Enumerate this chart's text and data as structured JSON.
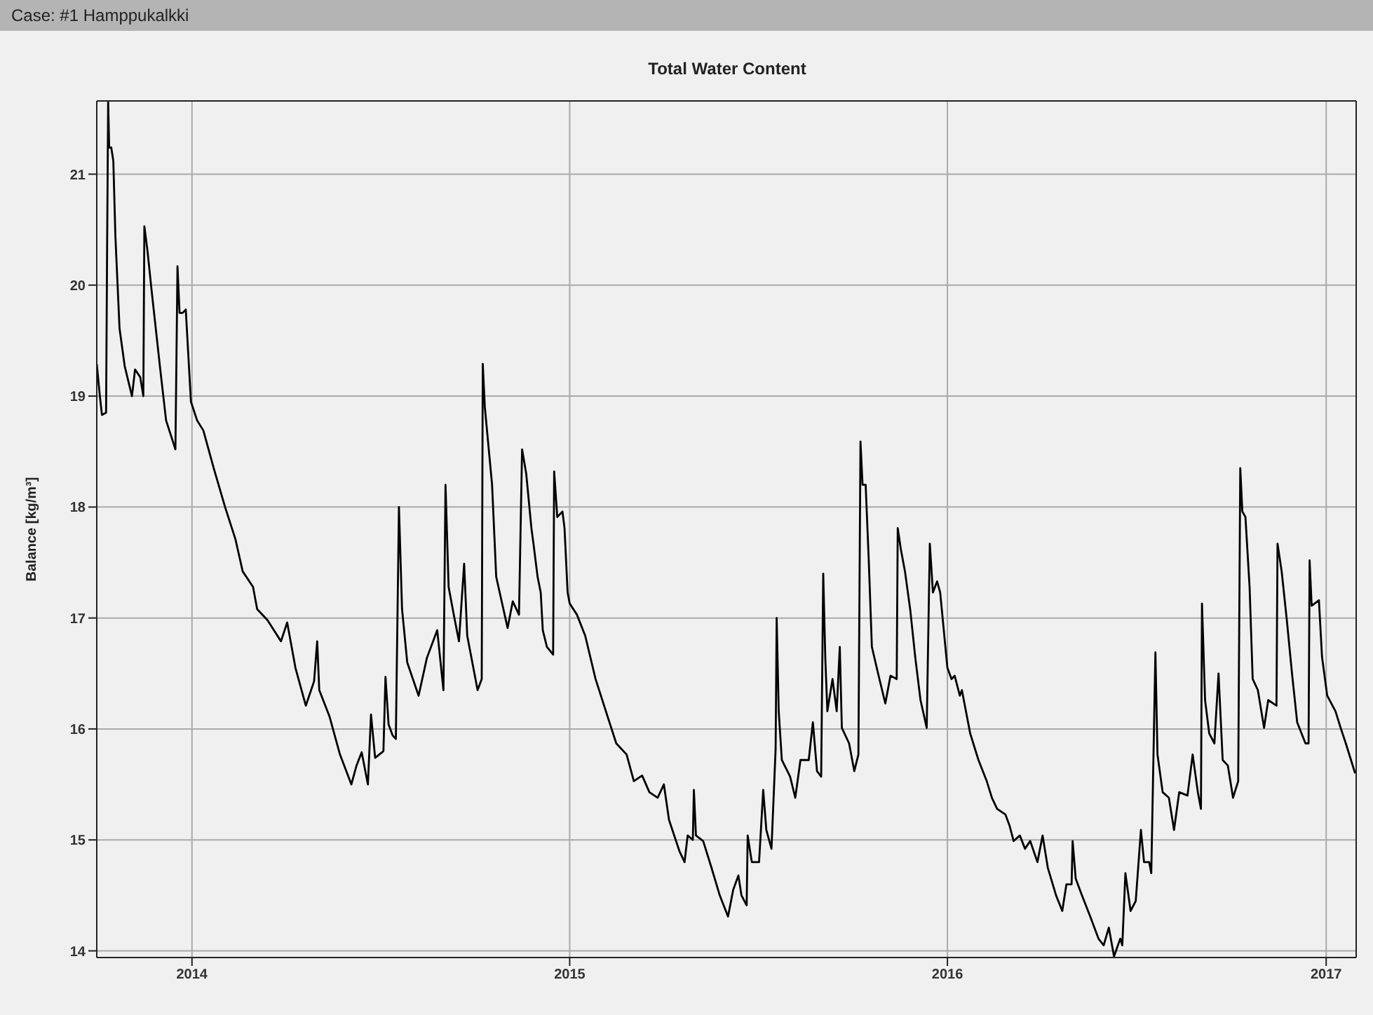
{
  "chart_data": {
    "type": "line",
    "title": "Total Water Content",
    "ylabel": "Balance [kg/m³]",
    "annotations": [
      "Case: #1 Hamppukalkki"
    ],
    "xlim": [
      "2013-10-01",
      "2017-01-30"
    ],
    "xticks": [
      {
        "value": "2014-01-01",
        "label": "2014"
      },
      {
        "value": "2015-01-01",
        "label": "2015"
      },
      {
        "value": "2016-01-01",
        "label": "2016"
      },
      {
        "value": "2017-01-01",
        "label": "2017"
      }
    ],
    "ylim": [
      13.94,
      21.66
    ],
    "yticks": [
      14,
      15,
      16,
      17,
      18,
      19,
      20,
      21
    ],
    "grid": true,
    "marker": "none",
    "line_style": "solid",
    "x": [
      "2013-10-01",
      "2013-10-04",
      "2013-10-06",
      "2013-10-10",
      "2013-10-11",
      "2013-10-12",
      "2013-10-13",
      "2013-10-15",
      "2013-10-17",
      "2013-10-19",
      "2013-10-23",
      "2013-10-28",
      "2013-11-04",
      "2013-11-07",
      "2013-11-12",
      "2013-11-15",
      "2013-11-16",
      "2013-11-19",
      "2013-11-23",
      "2013-12-01",
      "2013-12-07",
      "2013-12-16",
      "2013-12-18",
      "2013-12-20",
      "2013-12-23",
      "2013-12-26",
      "2013-12-31",
      "2014-01-06",
      "2014-01-12",
      "2014-01-22",
      "2014-02-02",
      "2014-02-12",
      "2014-02-19",
      "2014-03-01",
      "2014-03-05",
      "2014-03-15",
      "2014-03-28",
      "2014-04-03",
      "2014-04-11",
      "2014-04-21",
      "2014-04-29",
      "2014-05-02",
      "2014-05-04",
      "2014-05-14",
      "2014-05-24",
      "2014-06-04",
      "2014-06-09",
      "2014-06-14",
      "2014-06-20",
      "2014-06-23",
      "2014-06-27",
      "2014-07-05",
      "2014-07-07",
      "2014-07-10",
      "2014-07-14",
      "2014-07-17",
      "2014-07-20",
      "2014-07-23",
      "2014-07-28",
      "2014-08-08",
      "2014-08-16",
      "2014-08-26",
      "2014-09-01",
      "2014-09-03",
      "2014-09-06",
      "2014-09-11",
      "2014-09-16",
      "2014-09-21",
      "2014-09-24",
      "2014-10-04",
      "2014-10-08",
      "2014-10-09",
      "2014-10-11",
      "2014-10-18",
      "2014-10-22",
      "2014-11-02",
      "2014-11-07",
      "2014-11-13",
      "2014-11-16",
      "2014-11-20",
      "2014-11-25",
      "2014-11-27",
      "2014-12-01",
      "2014-12-04",
      "2014-12-06",
      "2014-12-10",
      "2014-12-16",
      "2014-12-17",
      "2014-12-20",
      "2014-12-25",
      "2014-12-27",
      "2014-12-30",
      "2015-01-01",
      "2015-01-08",
      "2015-01-16",
      "2015-01-26",
      "2015-02-06",
      "2015-02-15",
      "2015-02-25",
      "2015-03-04",
      "2015-03-12",
      "2015-03-19",
      "2015-03-27",
      "2015-04-02",
      "2015-04-07",
      "2015-04-17",
      "2015-04-22",
      "2015-04-25",
      "2015-04-30",
      "2015-05-01",
      "2015-05-03",
      "2015-05-10",
      "2015-05-18",
      "2015-05-26",
      "2015-06-03",
      "2015-06-08",
      "2015-06-13",
      "2015-06-16",
      "2015-06-21",
      "2015-06-22",
      "2015-06-26",
      "2015-07-03",
      "2015-07-07",
      "2015-07-10",
      "2015-07-15",
      "2015-07-19",
      "2015-07-20",
      "2015-07-22",
      "2015-07-25",
      "2015-08-02",
      "2015-08-07",
      "2015-08-12",
      "2015-08-20",
      "2015-08-24",
      "2015-08-28",
      "2015-09-01",
      "2015-09-03",
      "2015-09-05",
      "2015-09-07",
      "2015-09-12",
      "2015-09-16",
      "2015-09-19",
      "2015-09-21",
      "2015-09-28",
      "2015-10-03",
      "2015-10-07",
      "2015-10-09",
      "2015-10-11",
      "2015-10-14",
      "2015-10-17",
      "2015-10-20",
      "2015-10-26",
      "2015-11-02",
      "2015-11-07",
      "2015-11-13",
      "2015-11-14",
      "2015-11-17",
      "2015-11-21",
      "2015-11-26",
      "2015-12-01",
      "2015-12-06",
      "2015-12-12",
      "2015-12-15",
      "2015-12-18",
      "2015-12-22",
      "2015-12-25",
      "2016-01-01",
      "2016-01-05",
      "2016-01-08",
      "2016-01-13",
      "2016-01-15",
      "2016-01-23",
      "2016-01-31",
      "2016-02-08",
      "2016-02-13",
      "2016-02-18",
      "2016-02-26",
      "2016-03-01",
      "2016-03-05",
      "2016-03-11",
      "2016-03-16",
      "2016-03-21",
      "2016-03-28",
      "2016-04-02",
      "2016-04-07",
      "2016-04-15",
      "2016-04-21",
      "2016-04-25",
      "2016-04-30",
      "2016-05-01",
      "2016-05-04",
      "2016-05-10",
      "2016-05-18",
      "2016-05-26",
      "2016-05-31",
      "2016-06-05",
      "2016-06-10",
      "2016-06-16",
      "2016-06-18",
      "2016-06-21",
      "2016-06-26",
      "2016-07-01",
      "2016-07-06",
      "2016-07-09",
      "2016-07-14",
      "2016-07-16",
      "2016-07-20",
      "2016-07-22",
      "2016-07-27",
      "2016-08-02",
      "2016-08-07",
      "2016-08-12",
      "2016-08-20",
      "2016-08-25",
      "2016-08-30",
      "2016-09-02",
      "2016-09-03",
      "2016-09-06",
      "2016-09-10",
      "2016-09-15",
      "2016-09-19",
      "2016-09-23",
      "2016-09-28",
      "2016-10-03",
      "2016-10-08",
      "2016-10-10",
      "2016-10-12",
      "2016-10-15",
      "2016-10-19",
      "2016-10-22",
      "2016-10-27",
      "2016-11-02",
      "2016-11-06",
      "2016-11-14",
      "2016-11-15",
      "2016-11-19",
      "2016-11-24",
      "2016-11-29",
      "2016-12-04",
      "2016-12-12",
      "2016-12-15",
      "2016-12-16",
      "2016-12-18",
      "2016-12-25",
      "2016-12-28",
      "2017-01-02",
      "2017-01-10",
      "2017-01-15",
      "2017-01-20",
      "2017-01-25",
      "2017-01-29"
    ],
    "series": [
      {
        "color": "#000000",
        "values": [
          19.29,
          19.0,
          18.83,
          18.85,
          20.34,
          21.65,
          21.24,
          21.24,
          21.12,
          20.44,
          19.61,
          19.27,
          19.0,
          19.24,
          19.17,
          19.0,
          20.53,
          20.31,
          19.95,
          19.27,
          18.78,
          18.52,
          20.17,
          19.75,
          19.75,
          19.78,
          18.95,
          18.78,
          18.69,
          18.35,
          18.0,
          17.71,
          17.42,
          17.28,
          17.08,
          16.98,
          16.79,
          16.96,
          16.55,
          16.21,
          16.43,
          16.79,
          16.35,
          16.11,
          15.77,
          15.5,
          15.67,
          15.79,
          15.5,
          16.13,
          15.74,
          15.8,
          16.47,
          16.04,
          15.94,
          15.91,
          18.0,
          17.08,
          16.6,
          16.3,
          16.64,
          16.89,
          16.35,
          18.2,
          17.28,
          17.03,
          16.79,
          17.49,
          16.84,
          16.35,
          16.45,
          19.29,
          18.9,
          18.2,
          17.37,
          16.91,
          17.15,
          17.03,
          18.52,
          18.3,
          17.81,
          17.67,
          17.37,
          17.23,
          16.89,
          16.74,
          16.67,
          18.32,
          17.91,
          17.96,
          17.81,
          17.23,
          17.13,
          17.03,
          16.84,
          16.45,
          16.13,
          15.87,
          15.77,
          15.53,
          15.58,
          15.43,
          15.38,
          15.5,
          15.18,
          14.9,
          14.8,
          15.04,
          15.0,
          15.45,
          15.04,
          14.99,
          14.75,
          14.5,
          14.31,
          14.55,
          14.68,
          14.5,
          14.41,
          15.04,
          14.8,
          14.8,
          15.45,
          15.09,
          14.92,
          15.82,
          17.0,
          16.16,
          15.72,
          15.57,
          15.38,
          15.72,
          15.72,
          16.06,
          15.62,
          15.57,
          17.4,
          16.64,
          16.16,
          16.45,
          16.16,
          16.74,
          16.01,
          15.87,
          15.62,
          15.77,
          18.59,
          18.2,
          18.2,
          17.52,
          16.74,
          16.5,
          16.23,
          16.48,
          16.45,
          17.81,
          17.62,
          17.42,
          17.08,
          16.64,
          16.26,
          16.01,
          17.67,
          17.23,
          17.33,
          17.23,
          16.55,
          16.45,
          16.48,
          16.3,
          16.35,
          15.96,
          15.72,
          15.53,
          15.38,
          15.28,
          15.23,
          15.13,
          14.99,
          15.04,
          14.92,
          14.99,
          14.8,
          15.04,
          14.75,
          14.5,
          14.36,
          14.6,
          14.6,
          14.99,
          14.65,
          14.5,
          14.31,
          14.11,
          14.05,
          14.21,
          13.95,
          14.11,
          14.05,
          14.7,
          14.36,
          14.45,
          15.09,
          14.8,
          14.8,
          14.7,
          16.69,
          15.77,
          15.43,
          15.38,
          15.09,
          15.43,
          15.4,
          15.77,
          15.43,
          15.28,
          17.13,
          16.26,
          15.96,
          15.87,
          16.5,
          15.72,
          15.67,
          15.38,
          15.53,
          18.35,
          17.96,
          17.91,
          17.28,
          16.45,
          16.35,
          16.01,
          16.26,
          16.21,
          17.67,
          17.42,
          16.98,
          16.5,
          16.06,
          15.87,
          15.87,
          17.52,
          17.11,
          17.16,
          16.65,
          16.3,
          16.16,
          16.01,
          15.87,
          15.72,
          15.6
        ]
      }
    ]
  }
}
